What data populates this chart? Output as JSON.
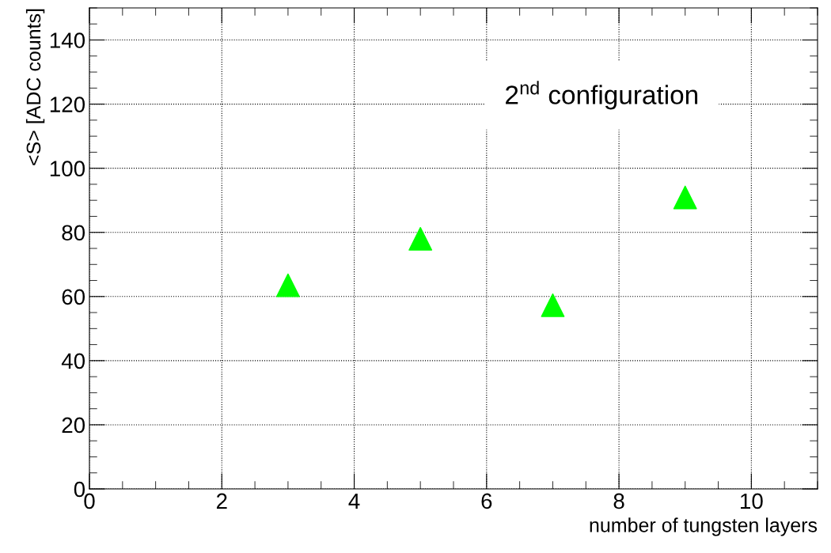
{
  "chart_data": {
    "type": "scatter",
    "xlabel": "number of tungsten layers",
    "ylabel": "<S> [ADC counts]",
    "x": [
      3,
      5,
      7,
      9
    ],
    "series": [
      {
        "color": "#00ff00",
        "values": [
          63.5,
          78,
          57.3,
          90.9
        ]
      }
    ],
    "marker": "triangle",
    "xlim": [
      0,
      11
    ],
    "ylim": [
      0,
      150
    ],
    "xticks": [
      0,
      2,
      4,
      6,
      8,
      10
    ],
    "yticks": [
      0,
      20,
      40,
      60,
      80,
      100,
      120,
      140
    ],
    "grid": true,
    "annotations": [
      "2$^{nd}$ configuration"
    ]
  }
}
